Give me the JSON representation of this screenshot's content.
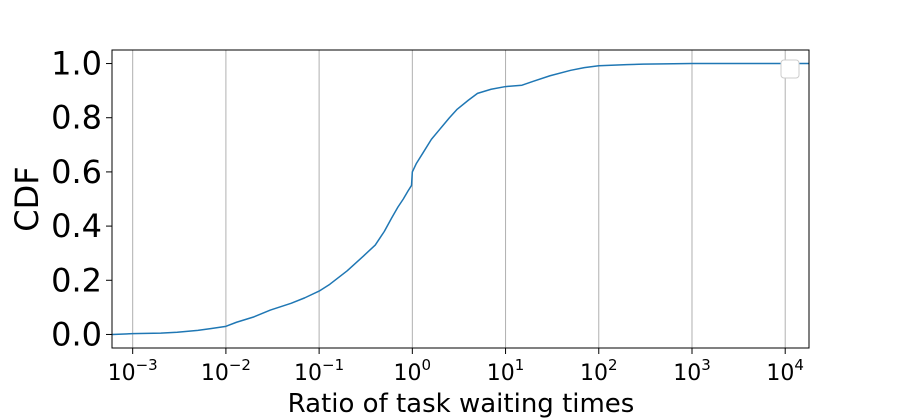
{
  "chart_data": {
    "type": "line",
    "title": "",
    "xlabel": "Ratio of task waiting times",
    "ylabel": "CDF",
    "xscale": "log",
    "xlim": [
      0.0006,
      18000
    ],
    "ylim": [
      -0.05,
      1.05
    ],
    "x_ticks": [
      {
        "value": 0.001,
        "base": "10",
        "exp": "−3"
      },
      {
        "value": 0.01,
        "base": "10",
        "exp": "−2"
      },
      {
        "value": 0.1,
        "base": "10",
        "exp": "−1"
      },
      {
        "value": 1,
        "base": "10",
        "exp": "0"
      },
      {
        "value": 10,
        "base": "10",
        "exp": "1"
      },
      {
        "value": 100,
        "base": "10",
        "exp": "2"
      },
      {
        "value": 1000,
        "base": "10",
        "exp": "3"
      },
      {
        "value": 10000,
        "base": "10",
        "exp": "4"
      }
    ],
    "y_ticks": [
      {
        "value": 0.0,
        "label": "0.0"
      },
      {
        "value": 0.2,
        "label": "0.2"
      },
      {
        "value": 0.4,
        "label": "0.4"
      },
      {
        "value": 0.6,
        "label": "0.6"
      },
      {
        "value": 0.8,
        "label": "0.8"
      },
      {
        "value": 1.0,
        "label": "1.0"
      }
    ],
    "grid": "vertical",
    "legend": {
      "position": "upper-right",
      "entries": []
    },
    "colors": {
      "line": "#1f77b4",
      "grid": "#b0b0b0",
      "axes": "#000000"
    },
    "series": [
      {
        "name": "CDF",
        "x": [
          0.0006,
          0.001,
          0.002,
          0.003,
          0.005,
          0.007,
          0.01,
          0.013,
          0.02,
          0.03,
          0.05,
          0.07,
          0.1,
          0.13,
          0.2,
          0.3,
          0.4,
          0.5,
          0.6,
          0.7,
          0.8,
          0.9,
          0.98,
          1.0,
          1.1,
          1.3,
          1.6,
          2.0,
          2.5,
          3.0,
          4.0,
          5.0,
          7.0,
          10,
          15,
          20,
          30,
          50,
          70,
          100,
          200,
          300,
          500,
          1000,
          10000,
          18000
        ],
        "y": [
          0.0,
          0.003,
          0.005,
          0.008,
          0.015,
          0.022,
          0.03,
          0.045,
          0.065,
          0.09,
          0.115,
          0.135,
          0.16,
          0.185,
          0.235,
          0.29,
          0.33,
          0.38,
          0.43,
          0.47,
          0.5,
          0.53,
          0.55,
          0.6,
          0.63,
          0.67,
          0.72,
          0.76,
          0.8,
          0.83,
          0.865,
          0.89,
          0.905,
          0.915,
          0.92,
          0.935,
          0.955,
          0.975,
          0.985,
          0.992,
          0.996,
          0.998,
          0.999,
          1.0,
          1.0,
          1.0
        ]
      }
    ]
  }
}
